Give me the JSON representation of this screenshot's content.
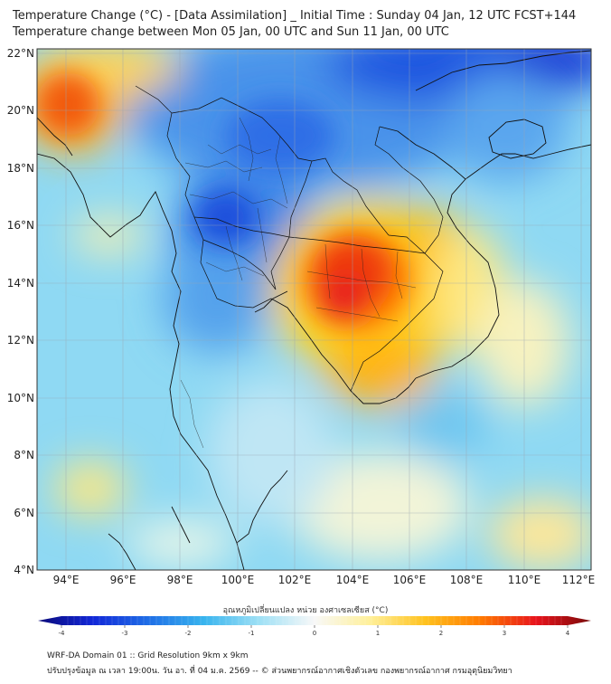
{
  "header": {
    "title_line1": "Temperature Change (°C) - [Data Assimilation] _ Initial Time : Sunday 04 Jan, 12 UTC FCST+144",
    "title_line2": "Temperature change between Mon 05 Jan, 00 UTC and Sun 11 Jan, 00 UTC"
  },
  "map": {
    "lat_labels": [
      "22°N",
      "20°N",
      "18°N",
      "16°N",
      "14°N",
      "12°N",
      "10°N",
      "8°N",
      "6°N",
      "4°N"
    ],
    "lon_labels": [
      "94°E",
      "96°E",
      "98°E",
      "100°E",
      "102°E",
      "104°E",
      "106°E",
      "108°E",
      "110°E",
      "112°E"
    ],
    "extent": {
      "lon_min": 93,
      "lon_max": 112.3,
      "lat_min": 4,
      "lat_max": 22.2
    },
    "gridlines": true
  },
  "colorbar": {
    "title": "อุณหภูมิเปลี่ยนแปลง หน่วย องศาเซลเซียส (°C)",
    "tick_labels": [
      "-4",
      "-3",
      "-2",
      "-1",
      "0",
      "1",
      "2",
      "3",
      "4"
    ],
    "min": -4,
    "max": 4,
    "stops": [
      "#0b0a7a",
      "#1228d8",
      "#1f6ee6",
      "#38b4ee",
      "#9ee0f5",
      "#f8f8f8",
      "#fff09a",
      "#ffc21e",
      "#ff7a00",
      "#e8141c",
      "#7a0a0a"
    ]
  },
  "footer": {
    "line1": "WRF-DA Domain 01 :: Grid Resolution 9km x 9km",
    "line2": "ปรับปรุงข้อมูล ณ เวลา 19:00น. วัน อา. ที่ 04 ม.ค. 2569 -- © ส่วนพยากรณ์อากาศเชิงตัวเลข กองพยากรณ์อากาศ กรมอุตุนิยมวิทยา"
  }
}
